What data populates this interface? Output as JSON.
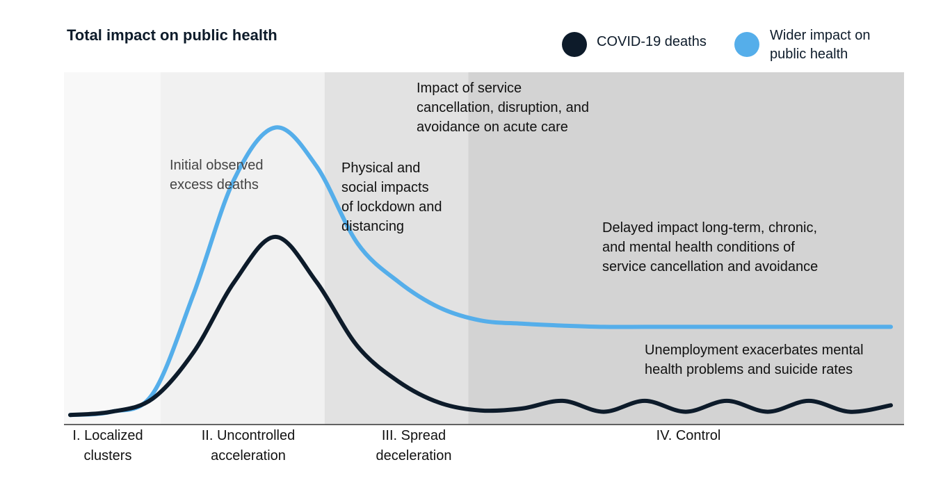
{
  "chart_data": {
    "type": "line",
    "title": "Total impact on public health",
    "xlabel": "",
    "ylabel": "",
    "grid": false,
    "legend_position": "top-right",
    "x": [
      0,
      0.5,
      1,
      1.5,
      2,
      2.5,
      3,
      3.5,
      4,
      4.5,
      5,
      5.5,
      6,
      6.5,
      7,
      7.5,
      8,
      8.5,
      9,
      9.5,
      10
    ],
    "series": [
      {
        "name": "COVID-19 deaths",
        "color": "#0d1b2a",
        "values": [
          0.3,
          0.8,
          2.8,
          10,
          21,
          28,
          21,
          11,
          5.5,
          2.2,
          1,
          1.3,
          2.5,
          0.8,
          2.5,
          0.8,
          2.5,
          0.8,
          2.5,
          0.8,
          1.8
        ]
      },
      {
        "name": "Wider impact on public health",
        "color": "#55aeea",
        "values": [
          0.3,
          0.8,
          3.5,
          19,
          37,
          45,
          39,
          27,
          21,
          17,
          15,
          14.5,
          14.2,
          14,
          14,
          14,
          14,
          14,
          14,
          14,
          14
        ]
      }
    ],
    "ylim": [
      0,
      47
    ],
    "xlim": [
      0,
      10
    ],
    "phases": [
      {
        "label": "I. Localized clusters",
        "start": 0,
        "end": 1.1,
        "shade": "#f8f8f8"
      },
      {
        "label": "II. Uncontrolled acceleration",
        "start": 1.1,
        "end": 3.1,
        "shade": "#f1f1f1"
      },
      {
        "label": "III. Spread deceleration",
        "start": 3.1,
        "end": 4.85,
        "shade": "#e2e2e2"
      },
      {
        "label": "IV. Control",
        "start": 4.85,
        "end": 10,
        "shade": "#d3d3d3"
      }
    ],
    "annotations": [
      "Impact of service cancellation, disruption, and avoidance on acute care",
      "Initial observed excess deaths",
      "Physical and social impacts of lockdown and distancing",
      "Delayed impact long-term, chronic, and mental health conditions of service cancellation and avoidance",
      "Unemployment exacerbates mental health problems and suicide rates"
    ]
  },
  "legend": {
    "covid": {
      "label": "COVID-19 deaths",
      "color": "#0d1b2a"
    },
    "wider": {
      "label_line1": "Wider impact on",
      "label_line2": "public health",
      "color": "#55aeea"
    }
  },
  "annotations": {
    "service_cancellation": [
      "Impact of service",
      "cancellation, disruption, and",
      "avoidance on acute care"
    ],
    "initial_excess": [
      "Initial observed",
      "excess deaths"
    ],
    "lockdown": [
      "Physical and",
      "social impacts",
      "of lockdown and",
      "distancing"
    ],
    "delayed": [
      "Delayed impact long-term, chronic,",
      "and mental health conditions of",
      "service cancellation and avoidance"
    ],
    "unemployment": [
      "Unemployment exacerbates mental",
      "health problems and suicide rates"
    ]
  },
  "phases": {
    "p1": [
      "I. Localized",
      "clusters"
    ],
    "p2": [
      "II. Uncontrolled",
      "acceleration"
    ],
    "p3": [
      "III. Spread",
      "deceleration"
    ],
    "p4": [
      "IV. Control"
    ]
  }
}
